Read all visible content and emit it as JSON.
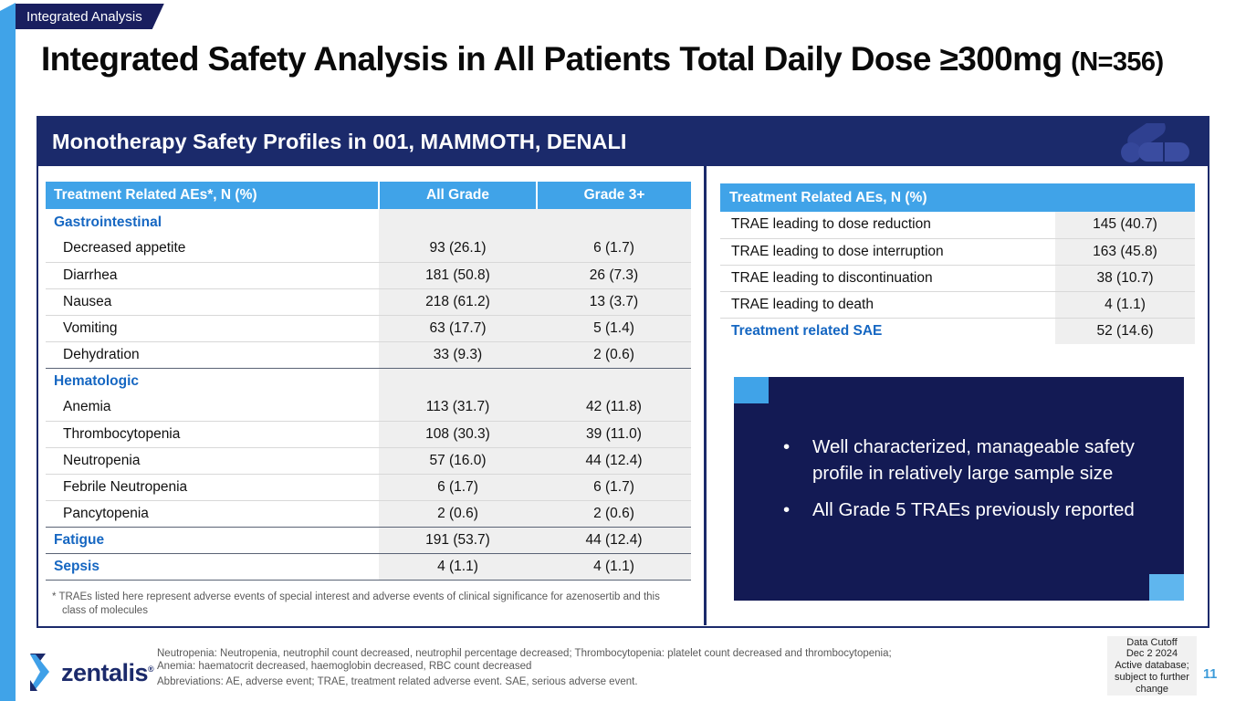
{
  "page": {
    "badge": "Integrated Analysis",
    "title": "Integrated Safety Analysis in All Patients Total Daily Dose ≥300mg ",
    "title_suffix": "(N=356)",
    "page_number": "11"
  },
  "panel": {
    "header": "Monotherapy Safety Profiles in 001, MAMMOTH, DENALI"
  },
  "ae_table": {
    "columns": [
      "Treatment Related AEs*, N (%)",
      "All Grade",
      "Grade 3+"
    ],
    "rows": [
      {
        "label": "Gastrointestinal",
        "type": "category",
        "sep": "none",
        "all_grade": "",
        "grade3": ""
      },
      {
        "label": "Decreased appetite",
        "type": "item",
        "sep": "none",
        "all_grade": "93 (26.1)",
        "grade3": "6 (1.7)"
      },
      {
        "label": "Diarrhea",
        "type": "item",
        "sep": "light",
        "all_grade": "181 (50.8)",
        "grade3": "26 (7.3)"
      },
      {
        "label": "Nausea",
        "type": "item",
        "sep": "light",
        "all_grade": "218 (61.2)",
        "grade3": "13 (3.7)"
      },
      {
        "label": "Vomiting",
        "type": "item",
        "sep": "light",
        "all_grade": "63 (17.7)",
        "grade3": "5 (1.4)"
      },
      {
        "label": "Dehydration",
        "type": "item",
        "sep": "light",
        "all_grade": "33 (9.3)",
        "grade3": "2 (0.6)"
      },
      {
        "label": "Hematologic",
        "type": "category",
        "sep": "dark",
        "all_grade": "",
        "grade3": ""
      },
      {
        "label": "Anemia",
        "type": "item",
        "sep": "none",
        "all_grade": "113 (31.7)",
        "grade3": "42 (11.8)"
      },
      {
        "label": "Thrombocytopenia",
        "type": "item",
        "sep": "light",
        "all_grade": "108 (30.3)",
        "grade3": "39 (11.0)"
      },
      {
        "label": "Neutropenia",
        "type": "item",
        "sep": "light",
        "all_grade": "57 (16.0)",
        "grade3": "44 (12.4)"
      },
      {
        "label": "Febrile Neutropenia",
        "type": "item",
        "sep": "light",
        "all_grade": "6 (1.7)",
        "grade3": "6 (1.7)"
      },
      {
        "label": "Pancytopenia",
        "type": "item",
        "sep": "light",
        "all_grade": "2 (0.6)",
        "grade3": "2 (0.6)"
      },
      {
        "label": "Fatigue",
        "type": "category-data",
        "sep": "dark",
        "all_grade": "191 (53.7)",
        "grade3": "44 (12.4)"
      },
      {
        "label": "Sepsis",
        "type": "category-data",
        "sep": "dark",
        "all_grade": "4 (1.1)",
        "grade3": "4 (1.1)"
      }
    ],
    "footnote": "* TRAEs listed here represent adverse events of special interest and adverse events of clinical significance for azenosertib and this class of molecules"
  },
  "trae_table": {
    "header": "Treatment Related AEs, N (%)",
    "rows": [
      {
        "label": "TRAE leading to dose reduction",
        "type": "item",
        "value": "145 (40.7)"
      },
      {
        "label": "TRAE leading to dose interruption",
        "type": "item",
        "value": "163 (45.8)"
      },
      {
        "label": "TRAE leading to discontinuation",
        "type": "item",
        "value": "38 (10.7)"
      },
      {
        "label": "TRAE leading to death",
        "type": "item",
        "value": "4 (1.1)"
      },
      {
        "label": "Treatment related SAE",
        "type": "category",
        "value": "52 (14.6)"
      }
    ]
  },
  "callout": {
    "bullets": [
      "Well characterized, manageable safety profile in relatively large sample size",
      "All Grade 5 TRAEs previously reported"
    ]
  },
  "footer": {
    "logo_text": "zentalis",
    "logo_reg": "®",
    "notes": [
      "Neutropenia: Neutropenia, neutrophil count decreased, neutrophil percentage decreased; Thrombocytopenia: platelet count decreased and thrombocytopenia;",
      "Anemia: haematocrit decreased, haemoglobin decreased, RBC count decreased",
      "Abbreviations: AE, adverse event; TRAE, treatment related adverse event. SAE, serious adverse event."
    ],
    "data_cutoff": "Data Cutoff\nDec 2 2024\nActive database;\nsubject to further\nchange"
  },
  "colors": {
    "accent": "#40A3E8",
    "accent_light": "#5FB6EE",
    "navy": "#1B2A6B",
    "callout_navy": "#131A54",
    "category_blue": "#1667C2"
  }
}
